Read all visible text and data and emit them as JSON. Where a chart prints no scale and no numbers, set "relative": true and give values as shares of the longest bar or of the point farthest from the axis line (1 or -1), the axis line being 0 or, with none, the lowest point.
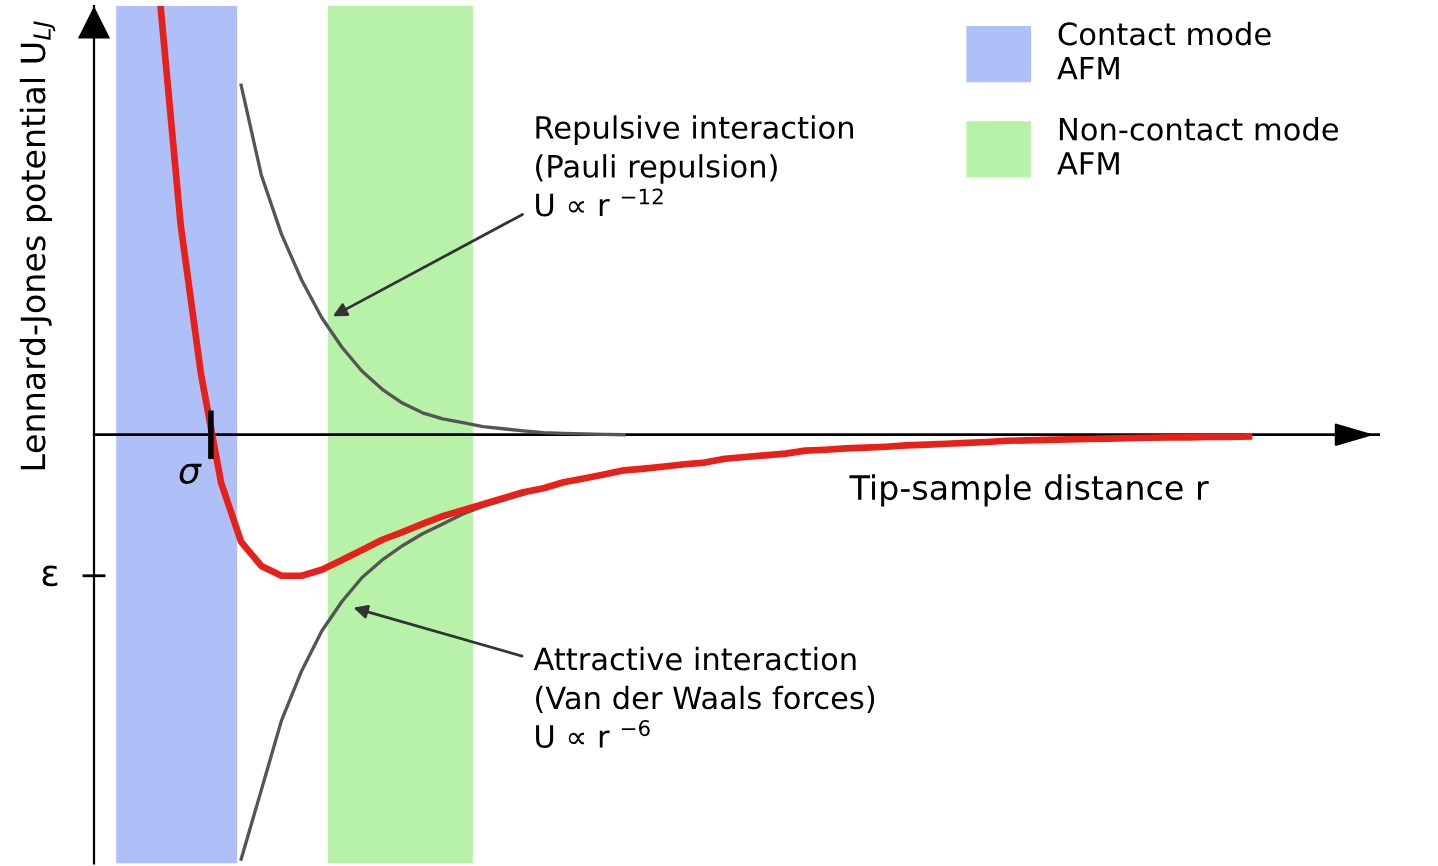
{
  "chart_data": {
    "type": "line",
    "relative": true,
    "ylabel": "Lennard-Jones potential U$_{LJ}$",
    "xlabel": "Tip-sample distance r",
    "categories": [
      null,
      null,
      null,
      null,
      null,
      null,
      null,
      null,
      null,
      null,
      null,
      null,
      null,
      null,
      null,
      null,
      null,
      null,
      null,
      null,
      null,
      null,
      null,
      null,
      null,
      null,
      null,
      null,
      null,
      null,
      null,
      null,
      null,
      null,
      null,
      null,
      null,
      null,
      null,
      null,
      null,
      null,
      null,
      null,
      null,
      null,
      null,
      null,
      null,
      null,
      null,
      null,
      null,
      null,
      null,
      null,
      null,
      null,
      null,
      null,
      null
    ],
    "series": [
      {
        "color": "#e8201a",
        "values": [
          1.0,
          0.49,
          0.144,
          -0.111,
          -0.25,
          -0.306,
          -0.329,
          -0.329,
          -0.315,
          -0.292,
          -0.269,
          -0.245,
          -0.227,
          -0.208,
          -0.19,
          -0.176,
          -0.162,
          -0.148,
          -0.134,
          -0.125,
          -0.111,
          -0.102,
          -0.093,
          -0.083,
          -0.079,
          -0.074,
          -0.069,
          -0.065,
          -0.056,
          -0.052,
          -0.048,
          -0.044,
          -0.037,
          -0.035,
          -0.032,
          -0.03,
          -0.028,
          -0.025,
          -0.023,
          -0.021,
          -0.019,
          -0.017,
          -0.014,
          -0.013,
          -0.012,
          -0.011,
          -0.01,
          -0.009,
          -0.008,
          -0.007,
          -0.006,
          -0.006,
          -0.005,
          -0.005,
          -0.004,
          null,
          null,
          null,
          null,
          null,
          null
        ]
      },
      {
        "color": "#555555",
        "values": [
          null,
          null,
          null,
          null,
          0.815,
          0.606,
          0.468,
          0.361,
          0.273,
          0.204,
          0.148,
          0.106,
          0.074,
          0.051,
          0.037,
          0.028,
          0.019,
          0.014,
          0.009,
          0.005,
          0.003,
          0.002,
          0.001,
          0.0,
          null,
          null,
          null,
          null,
          null,
          null,
          null,
          null,
          null,
          null,
          null,
          null,
          null,
          null,
          null,
          null,
          null,
          null,
          null,
          null,
          null,
          null,
          null,
          null,
          null,
          null,
          null,
          null,
          null,
          null,
          null,
          null,
          null,
          null,
          null,
          null,
          null
        ]
      },
      {
        "color": "#555555",
        "values": [
          null,
          null,
          null,
          null,
          -0.99,
          -0.829,
          -0.667,
          -0.551,
          -0.458,
          -0.389,
          -0.333,
          -0.292,
          -0.259,
          -0.231,
          -0.208,
          -0.185,
          -0.167,
          -0.153,
          -0.139,
          null,
          null,
          null,
          null,
          null,
          null,
          null,
          null,
          null,
          null,
          null,
          null,
          null,
          null,
          null,
          null,
          null,
          null,
          null,
          null,
          null,
          null,
          null,
          null,
          null,
          null,
          null,
          null,
          null,
          null,
          null,
          null,
          null,
          null,
          null,
          null,
          null,
          null,
          null,
          null,
          null,
          null
        ]
      }
    ],
    "annotations": [
      "σ",
      "ε",
      "Repulsive interaction\n(Pauli repulsion)\nU ∝ r $^{−12}$",
      "Attractive interaction\n(Van der Waals forces)\nU ∝ r $^{−6}$",
      "Contact mode\nAFM",
      "Non-contact mode\nAFM"
    ],
    "line_style": "solid",
    "marker": "none"
  }
}
